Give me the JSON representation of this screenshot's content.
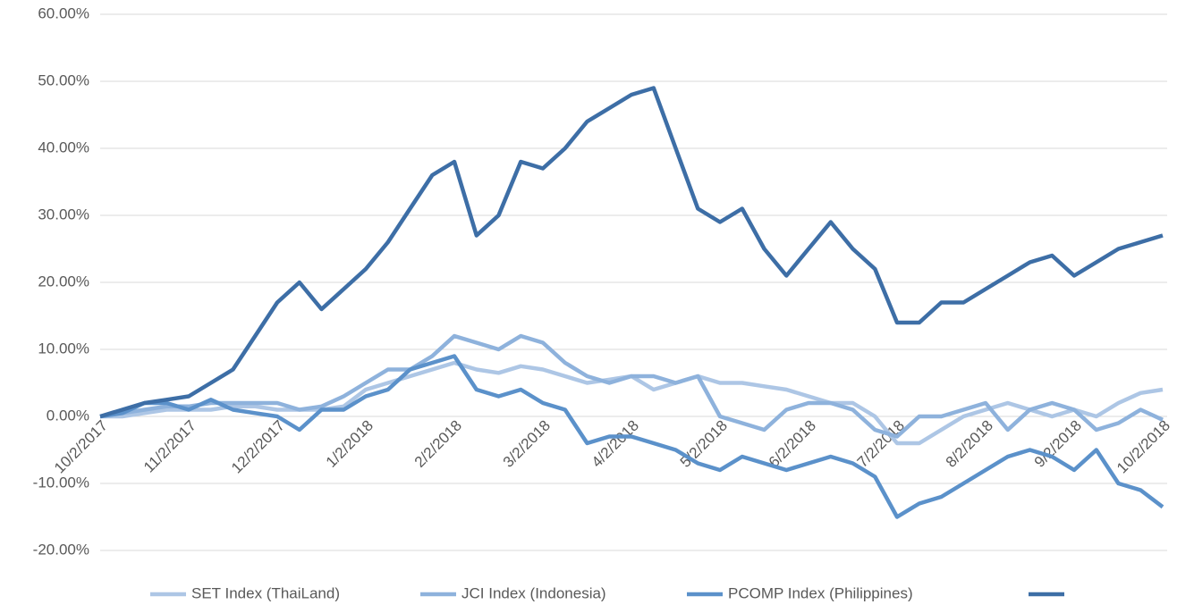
{
  "chart_data": {
    "type": "line",
    "categories": [
      "10/2/2017",
      null,
      null,
      null,
      "11/2/2017",
      null,
      null,
      null,
      "12/2/2017",
      null,
      null,
      null,
      "1/2/2018",
      null,
      null,
      null,
      "2/2/2018",
      null,
      null,
      null,
      "3/2/2018",
      null,
      null,
      null,
      "4/2/2018",
      null,
      null,
      null,
      "5/2/2018",
      null,
      null,
      null,
      "6/2/2018",
      null,
      null,
      null,
      "7/2/2018",
      null,
      null,
      null,
      "8/2/2018",
      null,
      null,
      null,
      "9/2/2018",
      null,
      null,
      null,
      "10/2/2018"
    ],
    "series": [
      {
        "name": "SET Index (ThaiLand)",
        "color": "#adc6e5",
        "values": [
          0,
          0,
          0.5,
          1,
          1,
          1,
          1.5,
          1.5,
          1,
          1,
          1,
          1.5,
          4,
          5,
          6,
          7,
          8,
          7,
          6.5,
          7.5,
          7,
          6,
          5,
          5.5,
          6,
          4,
          5,
          6,
          5,
          5,
          4.5,
          4,
          3,
          2,
          2,
          0,
          -4,
          -4,
          -2,
          0,
          1,
          2,
          1,
          0,
          1,
          0,
          2,
          3.5,
          4
        ]
      },
      {
        "name": "JCI Index (Indonesia)",
        "color": "#8eb2dc",
        "values": [
          0,
          0.5,
          1,
          1.5,
          1.5,
          2,
          2,
          2,
          2,
          1,
          1.5,
          3,
          5,
          7,
          7,
          9,
          12,
          11,
          10,
          12,
          11,
          8,
          6,
          5,
          6,
          6,
          5,
          6,
          0,
          -1,
          -2,
          1,
          2,
          2,
          1,
          -2,
          -3,
          0,
          0,
          1,
          2,
          -2,
          1,
          2,
          1,
          -2,
          -1,
          1,
          -0.5
        ]
      },
      {
        "name": "PCOMP Index (Philippines)",
        "color": "#5b91ca",
        "values": [
          0,
          0.5,
          2,
          2,
          1,
          2.5,
          1,
          0.5,
          0,
          -2,
          1,
          1,
          3,
          4,
          7,
          8,
          9,
          4,
          3,
          4,
          2,
          1,
          -4,
          -3,
          -3,
          -4,
          -5,
          -7,
          -8,
          -6,
          -7,
          -8,
          -7,
          -6,
          -7,
          -9,
          -15,
          -13,
          -12,
          -10,
          -8,
          -6,
          -5,
          -6,
          -8,
          -5,
          -10,
          -11,
          -13.5
        ]
      },
      {
        "color": "#3d6ea6",
        "values": [
          0,
          1,
          2,
          2.5,
          3,
          5,
          7,
          12,
          17,
          20,
          16,
          19,
          22,
          26,
          31,
          36,
          38,
          27,
          30,
          38,
          37,
          40,
          44,
          46,
          48,
          49,
          40,
          31,
          29,
          31,
          25,
          21,
          25,
          29,
          25,
          22,
          14,
          14,
          17,
          17,
          19,
          21,
          23,
          24,
          21,
          23,
          25,
          26,
          27
        ]
      }
    ],
    "ylim": [
      -20,
      60
    ],
    "yticks": [
      {
        "value": -20,
        "label": "-20.00%"
      },
      {
        "value": -10,
        "label": "-10.00%"
      },
      {
        "value": 0,
        "label": "0.00%"
      },
      {
        "value": 10,
        "label": "10.00%"
      },
      {
        "value": 20,
        "label": "20.00%"
      },
      {
        "value": 30,
        "label": "30.00%"
      },
      {
        "value": 40,
        "label": "40.00%"
      },
      {
        "value": 50,
        "label": "50.00%"
      },
      {
        "value": 60,
        "label": "60.00%"
      }
    ],
    "grid": true
  }
}
